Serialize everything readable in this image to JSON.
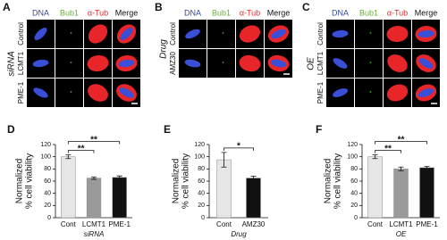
{
  "image_panels": [
    {
      "panel": "A",
      "columns": [
        "DNA",
        "Bub1",
        "α-Tub",
        "Merge"
      ],
      "column_colors": [
        "#34489a",
        "#6aae3c",
        "#e02a2a",
        "#111111"
      ],
      "rows": [
        "Control",
        "LCMT1",
        "PME-1"
      ],
      "group": "siRNA"
    },
    {
      "panel": "B",
      "columns": [
        "DNA",
        "Bub1",
        "α-Tub",
        "Merge"
      ],
      "column_colors": [
        "#34489a",
        "#6aae3c",
        "#e02a2a",
        "#111111"
      ],
      "rows": [
        "Control",
        "AMZ30"
      ],
      "group": "Drug"
    },
    {
      "panel": "C",
      "columns": [
        "DNA",
        "Bub1",
        "α-Tub",
        "Merge"
      ],
      "column_colors": [
        "#34489a",
        "#6aae3c",
        "#e02a2a",
        "#111111"
      ],
      "rows": [
        "Control",
        "LCMT1",
        "PME-1"
      ],
      "group": "OE"
    }
  ],
  "chart_data": [
    {
      "type": "bar",
      "panel": "D",
      "ylabel": [
        "Normalized",
        "% cell viability"
      ],
      "xlabel": "siRNA",
      "categories": [
        "Cont",
        "LCMT1",
        "PME-1"
      ],
      "values": [
        100,
        65,
        66
      ],
      "errors": [
        3,
        2,
        2.5
      ],
      "colors": [
        "#e6e6e6",
        "#9a9a9a",
        "#111111"
      ],
      "ylim": [
        0,
        120
      ],
      "yticks": [
        0,
        20,
        40,
        60,
        80,
        100,
        120
      ],
      "annotations": [
        "**",
        "**"
      ]
    },
    {
      "type": "bar",
      "panel": "E",
      "ylabel": [
        "Normalized",
        "% cell viability"
      ],
      "xlabel": "Drug",
      "categories": [
        "Cont",
        "AMZ30"
      ],
      "values": [
        95,
        65
      ],
      "errors": [
        12,
        3
      ],
      "colors": [
        "#e6e6e6",
        "#111111"
      ],
      "ylim": [
        0,
        120
      ],
      "yticks": [
        0,
        20,
        40,
        60,
        80,
        100,
        120
      ],
      "annotations": [
        "*"
      ]
    },
    {
      "type": "bar",
      "panel": "F",
      "ylabel": [
        "Normalized",
        "% cell viability"
      ],
      "xlabel": "OE",
      "categories": [
        "Cont",
        "LCMT1",
        "PME-1"
      ],
      "values": [
        100,
        80,
        82
      ],
      "errors": [
        3,
        3,
        2
      ],
      "colors": [
        "#e6e6e6",
        "#9a9a9a",
        "#111111"
      ],
      "ylim": [
        0,
        120
      ],
      "yticks": [
        0,
        20,
        40,
        60,
        80,
        100,
        120
      ],
      "annotations": [
        "**",
        "**"
      ]
    }
  ]
}
